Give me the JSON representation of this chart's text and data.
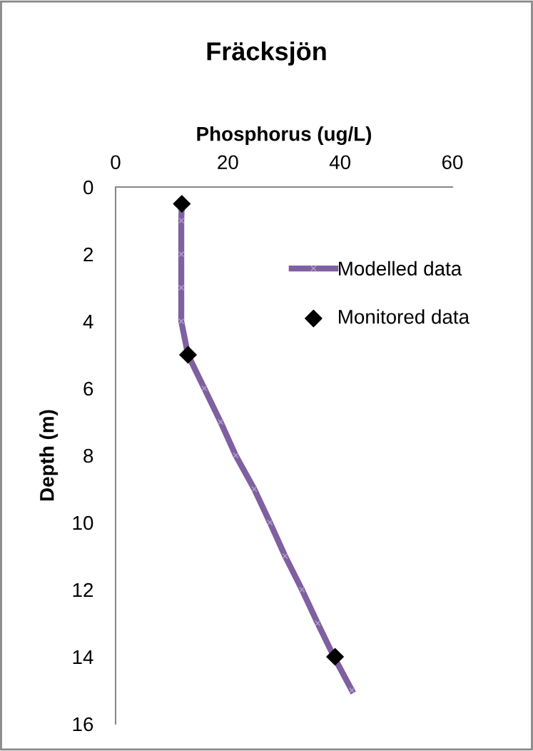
{
  "chart_data": {
    "type": "line",
    "title": "Fräcksjön",
    "xlabel": "Phosphorus (ug/L)",
    "ylabel": "Depth (m)",
    "xlim": [
      0,
      60
    ],
    "xticks": [
      0,
      20,
      40,
      60
    ],
    "ylim": [
      16,
      0
    ],
    "yticks": [
      0,
      2,
      4,
      6,
      8,
      10,
      12,
      14,
      16
    ],
    "grid": false,
    "legend": "right",
    "series": [
      {
        "name": "Modelled data",
        "color": "#7f60a0",
        "marker": "cross",
        "x": [
          11.8,
          11.7,
          11.7,
          11.7,
          11.7,
          12.9,
          15.8,
          18.7,
          21.4,
          24.7,
          27.5,
          30.2,
          33.2,
          36.0,
          38.9,
          42.1
        ],
        "values": [
          0.5,
          1,
          2,
          3,
          4,
          5,
          6,
          7,
          8,
          9,
          10,
          11,
          12,
          13,
          14,
          15
        ]
      },
      {
        "name": "Monitored data",
        "type": "scatter",
        "color": "#000000",
        "marker": "diamond",
        "x": [
          11.8,
          12.9,
          39.1
        ],
        "values": [
          0.5,
          5,
          14
        ]
      }
    ]
  }
}
